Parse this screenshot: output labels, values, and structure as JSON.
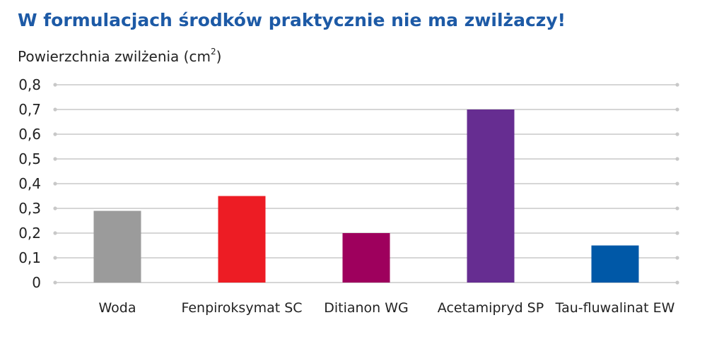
{
  "title": "W formulacjach środków praktycznie nie ma zwilżaczy!",
  "ylabel_main": "Powierzchnia zwilżenia (cm",
  "ylabel_sup": "2",
  "ylabel_close": ")",
  "chart_data": {
    "type": "bar",
    "title": "W formulacjach środków praktycznie nie ma zwilżaczy!",
    "ylabel": "Powierzchnia zwilżenia (cm²)",
    "xlabel": "",
    "ylim": [
      0,
      0.8
    ],
    "yticks": [
      "0",
      "0,1",
      "0,2",
      "0,3",
      "0,4",
      "0,5",
      "0,6",
      "0,7",
      "0,8"
    ],
    "grid": true,
    "categories": [
      "Woda",
      "Fenpiroksymat SC",
      "Ditianon WG",
      "Acetamipryd SP",
      "Tau-fluwalinat EW"
    ],
    "values": [
      0.29,
      0.35,
      0.2,
      0.7,
      0.15
    ],
    "colors": [
      "#9b9b9b",
      "#ed1c24",
      "#9e005d",
      "#662d91",
      "#0058a7"
    ]
  }
}
